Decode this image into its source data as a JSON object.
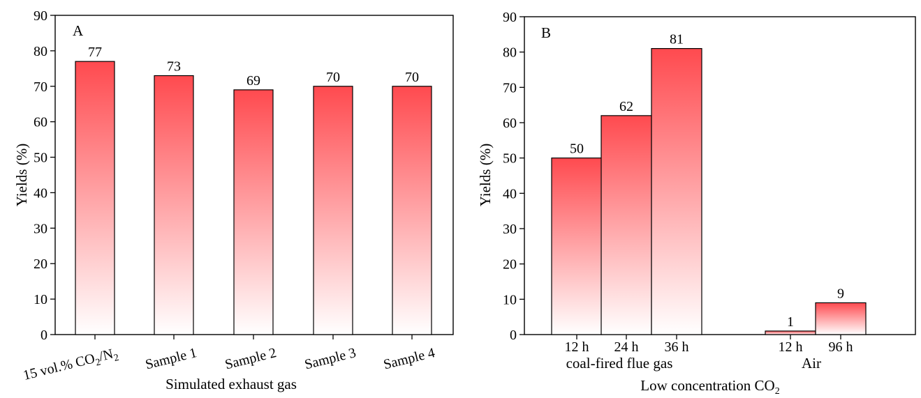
{
  "chart_data": [
    {
      "type": "bar",
      "panel_label": "A",
      "categories": [
        "15 vol.% CO",
        "Sample 1",
        "Sample 2",
        "Sample 3",
        "Sample 4"
      ],
      "first_category_parts": {
        "pre": "15 vol.% CO",
        "sub1": "2",
        "mid": "/N",
        "sub2": "2"
      },
      "values": [
        77,
        73,
        69,
        70,
        70
      ],
      "data_labels": [
        "77",
        "73",
        "69",
        "70",
        "70"
      ],
      "xlabel": "Simulated exhaust gas",
      "ylabel": "Yields (%)",
      "ylim": [
        0,
        90
      ],
      "yticks": [
        "0",
        "10",
        "20",
        "30",
        "40",
        "50",
        "60",
        "70",
        "80",
        "90"
      ],
      "bar_color_top": "#ff4a4f",
      "bar_color_bottom": "#ffffff",
      "grid": false,
      "legend": "none"
    },
    {
      "type": "bar",
      "panel_label": "B",
      "groups": [
        {
          "name": "coal-fired flue gas",
          "categories": [
            "12 h",
            "24 h",
            "36 h"
          ],
          "values": [
            50,
            62,
            81
          ],
          "data_labels": [
            "50",
            "62",
            "81"
          ]
        },
        {
          "name": "Air",
          "categories": [
            "12 h",
            "96 h"
          ],
          "values": [
            1,
            9
          ],
          "data_labels": [
            "1",
            "9"
          ]
        }
      ],
      "xlabel_parts": {
        "pre": "Low concentration CO",
        "sub": "2"
      },
      "ylabel": "Yields (%)",
      "ylim": [
        0,
        90
      ],
      "yticks": [
        "0",
        "10",
        "20",
        "30",
        "40",
        "50",
        "60",
        "70",
        "80",
        "90"
      ],
      "bar_color_top": "#ff4a4f",
      "bar_color_bottom": "#ffffff",
      "grid": false,
      "legend": "none"
    }
  ]
}
